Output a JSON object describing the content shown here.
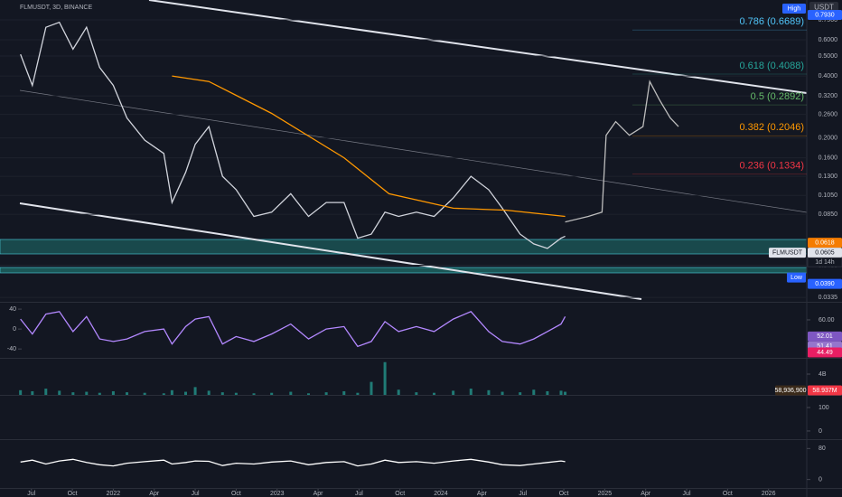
{
  "chart_data": [
    {
      "type": "line",
      "title": "FLMUSDT, 3D, BINANCE",
      "currency": "USDT",
      "yscale": "log",
      "xlim": [
        -2.3,
        56.8
      ],
      "ylim": [
        0.0322,
        0.937
      ],
      "xticks": [
        {
          "value": 0,
          "label": "Jul"
        },
        {
          "value": 3,
          "label": "Oct"
        },
        {
          "value": 6,
          "label": "2022"
        },
        {
          "value": 9,
          "label": "Apr"
        },
        {
          "value": 12,
          "label": "Jul"
        },
        {
          "value": 15,
          "label": "Oct"
        },
        {
          "value": 18,
          "label": "2023"
        },
        {
          "value": 21,
          "label": "Apr"
        },
        {
          "value": 24,
          "label": "Jul"
        },
        {
          "value": 27,
          "label": "Oct"
        },
        {
          "value": 30,
          "label": "2024"
        },
        {
          "value": 33,
          "label": "Apr"
        },
        {
          "value": 36,
          "label": "Jul"
        },
        {
          "value": 39,
          "label": "Oct"
        },
        {
          "value": 42,
          "label": "2025"
        },
        {
          "value": 45,
          "label": "Apr"
        },
        {
          "value": 48,
          "label": "Jul"
        },
        {
          "value": 51,
          "label": "Oct"
        },
        {
          "value": 54,
          "label": "2026"
        }
      ],
      "yticks": [
        {
          "value": 0.75,
          "label": "0.7500"
        },
        {
          "value": 0.6,
          "label": "0.6000"
        },
        {
          "value": 0.5,
          "label": "0.5000"
        },
        {
          "value": 0.4,
          "label": "0.4000"
        },
        {
          "value": 0.32,
          "label": "0.3200"
        },
        {
          "value": 0.26,
          "label": "0.2600"
        },
        {
          "value": 0.2,
          "label": "0.2000"
        },
        {
          "value": 0.16,
          "label": "0.1600"
        },
        {
          "value": 0.13,
          "label": "0.1300"
        },
        {
          "value": 0.105,
          "label": "0.1050"
        },
        {
          "value": 0.085,
          "label": "0.0850"
        },
        {
          "value": 0.048,
          "label": "0.0480"
        },
        {
          "value": 0.0335,
          "label": "0.0335"
        }
      ],
      "fibs": [
        {
          "value": 0.6689,
          "label": "0.786 (0.6689)",
          "color": "#4fc3f7"
        },
        {
          "value": 0.4088,
          "label": "0.618 (0.4088)",
          "color": "#26a69a"
        },
        {
          "value": 0.2892,
          "label": "0.5 (0.2892)",
          "color": "#66bb6a"
        },
        {
          "value": 0.2046,
          "label": "0.382 (0.2046)",
          "color": "#ff9800"
        },
        {
          "value": 0.1334,
          "label": "0.236 (0.1334)",
          "color": "#f23645"
        }
      ],
      "badges": [
        {
          "value": 0.793,
          "label": "0.7930",
          "tag": "High",
          "color": "#2962ff"
        },
        {
          "value": 0.0618,
          "label": "0.0618",
          "color": "#f57c00"
        },
        {
          "value": 0.0605,
          "label": "0.0605",
          "tag": "FLMUSDT",
          "sub": "1d 14h",
          "color": "#e0e3eb"
        },
        {
          "value": 0.039,
          "label": "0.0390",
          "tag": "Low",
          "color": "#2962ff"
        }
      ],
      "series": [
        {
          "color": "#d1d4dc",
          "x": [
            -0.8,
            0.07,
            1.06,
            2.05,
            3.05,
            4.04,
            5,
            6,
            7,
            8.3,
            9.7,
            10.3,
            11.3,
            12,
            13,
            14,
            15,
            16.3,
            17.6,
            19,
            20.3,
            21.6,
            22.9,
            23.9,
            24.9,
            25.9,
            26.9,
            28.2,
            29.5,
            30.9,
            32.2,
            33.5,
            34.5,
            35.8,
            36.8,
            37.8,
            38.8,
            39.1
          ],
          "values": [
            0.51,
            0.36,
            0.69,
            0.73,
            0.54,
            0.69,
            0.44,
            0.36,
            0.25,
            0.195,
            0.168,
            0.097,
            0.136,
            0.186,
            0.227,
            0.13,
            0.112,
            0.083,
            0.087,
            0.107,
            0.083,
            0.097,
            0.097,
            0.065,
            0.068,
            0.087,
            0.083,
            0.087,
            0.083,
            0.102,
            0.13,
            0.112,
            0.091,
            0.068,
            0.061,
            0.058,
            0.065,
            0.0665
          ]
        },
        {
          "color": "#ff9800",
          "x": [
            10.3,
            13,
            17.6,
            22.9,
            26.2,
            30.9,
            34.8,
            39.1
          ],
          "values": [
            0.4,
            0.376,
            0.263,
            0.16,
            0.107,
            0.091,
            0.089,
            0.083
          ]
        },
        {
          "color": "#bdbdbd",
          "x": [
            39.1,
            40.8,
            41.8,
            42.1,
            42.8,
            43.8,
            44.8,
            45.3,
            46,
            46.8,
            47.4
          ],
          "values": [
            0.078,
            0.083,
            0.087,
            0.206,
            0.24,
            0.206,
            0.227,
            0.376,
            0.307,
            0.25,
            0.227
          ]
        }
      ]
    },
    {
      "type": "line",
      "xlim": [
        -2.3,
        56.8
      ],
      "ylim": [
        -56,
        51
      ],
      "yticks": [
        40,
        0,
        -40
      ],
      "y2lim": [
        42.2,
        67.8
      ],
      "y2ticks": [
        {
          "value": 60,
          "label": "60.00"
        }
      ],
      "badges": [
        {
          "value": 52.01,
          "label": "52.01",
          "color": "#7e57c2"
        },
        {
          "value": 51.41,
          "label": "51.41",
          "color": "#9575cd"
        },
        {
          "value": 48.87,
          "label": "48.87",
          "color": "#ab47bc"
        },
        {
          "value": 44.49,
          "label": "44.49",
          "color": "#e91e63"
        }
      ],
      "series": [
        {
          "color": "#b388ff",
          "x": [
            -0.8,
            0.07,
            1.06,
            2.05,
            3.05,
            4.04,
            5,
            6,
            7,
            8.3,
            9.7,
            10.3,
            11.3,
            12,
            13,
            14,
            15,
            16.3,
            17.6,
            19,
            20.3,
            21.6,
            22.9,
            23.9,
            24.9,
            25.9,
            26.9,
            28.2,
            29.5,
            30.9,
            32.2,
            33.5,
            34.5,
            35.8,
            36.8,
            37.8,
            38.8,
            39.1
          ],
          "values": [
            20,
            -10,
            30,
            35,
            -5,
            25,
            -20,
            -25,
            -20,
            -5,
            0,
            -30,
            5,
            20,
            25,
            -30,
            -15,
            -25,
            -10,
            10,
            -20,
            0,
            5,
            -35,
            -25,
            15,
            -5,
            5,
            -5,
            20,
            35,
            -5,
            -25,
            -30,
            -20,
            -5,
            10,
            25
          ]
        }
      ]
    },
    {
      "type": "bar",
      "xlim": [
        -2.3,
        56.8
      ],
      "ylim": [
        0,
        6780000000
      ],
      "yticks": [
        {
          "value": 4000000000,
          "label": "4B"
        }
      ],
      "badges": [
        {
          "value": 58936900,
          "label": "58,936,900",
          "color": "#3a2a1a",
          "left": true
        },
        {
          "value": 58937000,
          "label": "58.937M",
          "color": "#f23645"
        }
      ],
      "color": "#26a69a",
      "x": [
        -0.8,
        0.07,
        1.06,
        2.05,
        3.05,
        4.04,
        5,
        6,
        7,
        8.3,
        9.7,
        10.3,
        11.3,
        12,
        13,
        14,
        15,
        16.3,
        17.6,
        19,
        20.3,
        21.6,
        22.9,
        23.9,
        24.9,
        25.9,
        26.9,
        28.2,
        29.5,
        30.9,
        32.2,
        33.5,
        34.5,
        35.8,
        36.8,
        37.8,
        38.8,
        39.1
      ],
      "values": [
        900000000,
        700000000,
        1200000000,
        800000000,
        500000000,
        600000000,
        400000000,
        700000000,
        500000000,
        400000000,
        300000000,
        900000000,
        600000000,
        1500000000,
        800000000,
        500000000,
        400000000,
        300000000,
        400000000,
        600000000,
        300000000,
        500000000,
        700000000,
        400000000,
        2500000000,
        6300000000,
        1000000000,
        500000000,
        400000000,
        800000000,
        1200000000,
        900000000,
        600000000,
        500000000,
        1000000000,
        700000000,
        800000000,
        600000000
      ]
    },
    {
      "type": "panel",
      "xlim": [
        -2.3,
        56.8
      ],
      "ylim": [
        -31,
        150
      ],
      "y2ticks": [
        100,
        0
      ]
    },
    {
      "type": "line",
      "xlim": [
        -2.3,
        56.8
      ],
      "ylim": [
        -21.8,
        99.4
      ],
      "y2ticks": [
        80,
        0
      ],
      "series": [
        {
          "color": "#ffffff",
          "x": [
            -0.8,
            0.07,
            1.06,
            2.05,
            3.05,
            4.04,
            5,
            6,
            7,
            8.3,
            9.7,
            10.3,
            11.3,
            12,
            13,
            14,
            15,
            16.3,
            17.6,
            19,
            20.3,
            21.6,
            22.9,
            23.9,
            24.9,
            25.9,
            26.9,
            28.2,
            29.5,
            30.9,
            32.2,
            33.5,
            34.5,
            35.8,
            36.8,
            37.8,
            38.8,
            39.1
          ],
          "values": [
            45,
            50,
            40,
            48,
            52,
            44,
            38,
            35,
            42,
            46,
            50,
            40,
            44,
            48,
            47,
            36,
            42,
            40,
            45,
            48,
            38,
            44,
            46,
            35,
            40,
            50,
            44,
            46,
            42,
            48,
            52,
            45,
            38,
            36,
            40,
            44,
            48,
            46
          ]
        }
      ]
    }
  ]
}
